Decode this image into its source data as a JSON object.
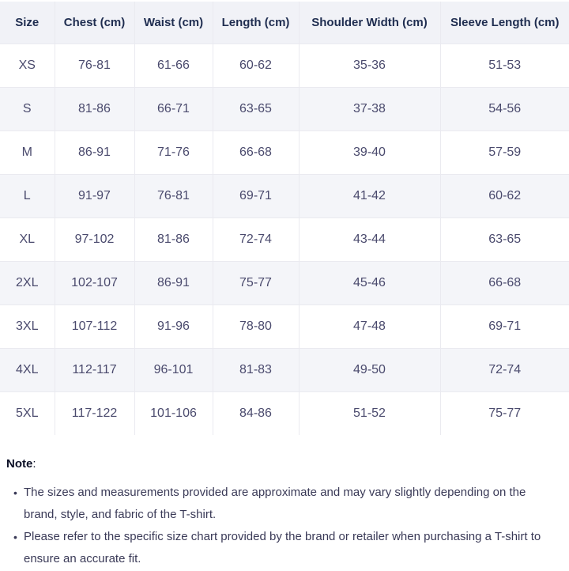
{
  "colors": {
    "header_bg": "#f1f2f7",
    "alt_row_bg": "#f4f5f9",
    "header_text": "#1f2d50",
    "cell_text": "#4a4a6d",
    "note_heading_text": "#0c1026",
    "note_text": "#3a3a57",
    "border": "#eaeaf0"
  },
  "chart_data": {
    "type": "table",
    "columns": [
      "Size",
      "Chest (cm)",
      "Waist (cm)",
      "Length (cm)",
      "Shoulder Width (cm)",
      "Sleeve Length (cm)"
    ],
    "rows": [
      [
        "XS",
        "76-81",
        "61-66",
        "60-62",
        "35-36",
        "51-53"
      ],
      [
        "S",
        "81-86",
        "66-71",
        "63-65",
        "37-38",
        "54-56"
      ],
      [
        "M",
        "86-91",
        "71-76",
        "66-68",
        "39-40",
        "57-59"
      ],
      [
        "L",
        "91-97",
        "76-81",
        "69-71",
        "41-42",
        "60-62"
      ],
      [
        "XL",
        "97-102",
        "81-86",
        "72-74",
        "43-44",
        "63-65"
      ],
      [
        "2XL",
        "102-107",
        "86-91",
        "75-77",
        "45-46",
        "66-68"
      ],
      [
        "3XL",
        "107-112",
        "91-96",
        "78-80",
        "47-48",
        "69-71"
      ],
      [
        "4XL",
        "112-117",
        "96-101",
        "81-83",
        "49-50",
        "72-74"
      ],
      [
        "5XL",
        "117-122",
        "101-106",
        "84-86",
        "51-52",
        "75-77"
      ]
    ]
  },
  "note": {
    "heading": "Note",
    "colon": ":",
    "items": [
      "The sizes and measurements provided are approximate and may vary slightly depending on the brand, style, and fabric of the T-shirt.",
      "Please refer to the specific size chart provided by the brand or retailer when purchasing a T-shirt to ensure an accurate fit."
    ]
  }
}
